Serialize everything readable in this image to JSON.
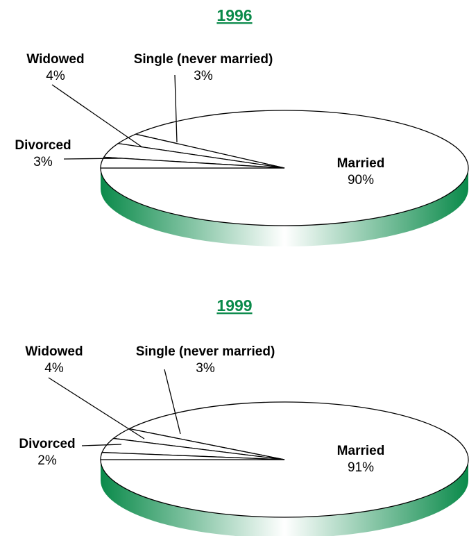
{
  "chart_data": [
    {
      "type": "pie",
      "title": "1996",
      "categories": [
        "Married",
        "Single (never married)",
        "Widowed",
        "Divorced"
      ],
      "values": [
        90,
        3,
        4,
        3
      ],
      "value_labels": [
        "90%",
        "3%",
        "4%",
        "3%"
      ],
      "color": "#ffffff",
      "side_color": "#0a8a4a",
      "title_color": "#0a8a4a"
    },
    {
      "type": "pie",
      "title": "1999",
      "categories": [
        "Married",
        "Single (never married)",
        "Widowed",
        "Divorced"
      ],
      "values": [
        91,
        3,
        4,
        2
      ],
      "value_labels": [
        "91%",
        "3%",
        "4%",
        "2%"
      ],
      "color": "#ffffff",
      "side_color": "#0a8a4a",
      "title_color": "#0a8a4a"
    }
  ]
}
